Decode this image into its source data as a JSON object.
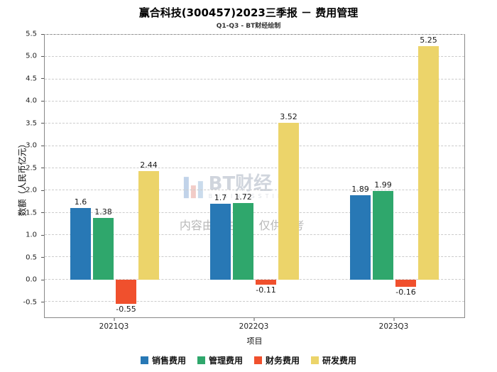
{
  "title": "赢合科技(300457)2023三季报 － 费用管理",
  "subtitle": "Q1-Q3 - BT财经绘制",
  "watermark": {
    "logo_text": "BT财经",
    "logo_sub": "BUSINESSTIMES",
    "disclaimer": "内容由AI生成，仅供参考"
  },
  "chart_data": {
    "type": "bar",
    "title": "赢合科技(300457)2023三季报 － 费用管理",
    "subtitle": "Q1-Q3 - BT财经绘制",
    "categories": [
      "2021Q3",
      "2022Q3",
      "2023Q3"
    ],
    "series": [
      {
        "name": "销售费用",
        "color": "#2878b5",
        "values": [
          1.6,
          1.7,
          1.89
        ]
      },
      {
        "name": "管理费用",
        "color": "#2fa76c",
        "values": [
          1.38,
          1.72,
          1.99
        ]
      },
      {
        "name": "财务费用",
        "color": "#f0502d",
        "values": [
          -0.55,
          -0.11,
          -0.16
        ]
      },
      {
        "name": "研发费用",
        "color": "#ecd46a",
        "values": [
          2.44,
          3.52,
          5.25
        ]
      }
    ],
    "xlabel": "项目",
    "ylabel": "数额（人民币亿元）",
    "ylim": [
      -0.85,
      5.5
    ],
    "yticks": [
      -0.5,
      0.0,
      0.5,
      1.0,
      1.5,
      2.0,
      2.5,
      3.0,
      3.5,
      4.0,
      4.5,
      5.0,
      5.5
    ],
    "grid": "horizontal-dashed",
    "legend_position": "bottom"
  }
}
